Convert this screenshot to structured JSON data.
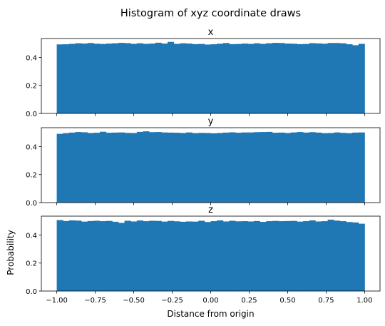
{
  "chart_data": {
    "title": "Histogram of xyz coordinate draws",
    "xlabel": "Distance from origin",
    "ylabel": "Probability",
    "bar_color": "#1f77b4",
    "x_ticks": [
      -1.0,
      -0.75,
      -0.5,
      -0.25,
      0.0,
      0.25,
      0.5,
      0.75,
      1.0
    ],
    "x_tick_labels": [
      "−1.00",
      "−0.75",
      "−0.50",
      "−0.25",
      "0.00",
      "0.25",
      "0.50",
      "0.75",
      "1.00"
    ],
    "y_ticks": [
      0.0,
      0.2,
      0.4
    ],
    "y_tick_labels": [
      "0.0",
      "0.2",
      "0.4"
    ],
    "xlim": [
      -1.1,
      1.1
    ],
    "ylim": [
      0,
      0.535
    ],
    "bins": {
      "start": -1.0,
      "end": 1.0,
      "count": 50
    },
    "panels": [
      {
        "type": "bar",
        "title": "x",
        "values": [
          0.493,
          0.494,
          0.497,
          0.501,
          0.499,
          0.503,
          0.498,
          0.496,
          0.499,
          0.501,
          0.504,
          0.502,
          0.497,
          0.501,
          0.497,
          0.499,
          0.505,
          0.499,
          0.511,
          0.497,
          0.501,
          0.499,
          0.495,
          0.496,
          0.492,
          0.494,
          0.498,
          0.503,
          0.495,
          0.496,
          0.499,
          0.497,
          0.501,
          0.497,
          0.501,
          0.504,
          0.503,
          0.499,
          0.498,
          0.495,
          0.496,
          0.502,
          0.5,
          0.498,
          0.503,
          0.503,
          0.501,
          0.494,
          0.487,
          0.497
        ]
      },
      {
        "type": "bar",
        "title": "y",
        "values": [
          0.491,
          0.496,
          0.5,
          0.504,
          0.502,
          0.497,
          0.499,
          0.506,
          0.499,
          0.5,
          0.501,
          0.498,
          0.497,
          0.505,
          0.509,
          0.503,
          0.504,
          0.501,
          0.5,
          0.499,
          0.497,
          0.501,
          0.496,
          0.498,
          0.497,
          0.495,
          0.497,
          0.5,
          0.502,
          0.499,
          0.501,
          0.501,
          0.503,
          0.504,
          0.505,
          0.499,
          0.5,
          0.497,
          0.501,
          0.504,
          0.5,
          0.503,
          0.5,
          0.496,
          0.497,
          0.501,
          0.498,
          0.496,
          0.5,
          0.501
        ]
      },
      {
        "type": "bar",
        "title": "z",
        "values": [
          0.507,
          0.5,
          0.505,
          0.503,
          0.496,
          0.5,
          0.502,
          0.499,
          0.501,
          0.495,
          0.487,
          0.502,
          0.497,
          0.504,
          0.499,
          0.502,
          0.501,
          0.496,
          0.501,
          0.498,
          0.495,
          0.497,
          0.496,
          0.502,
          0.493,
          0.499,
          0.505,
          0.497,
          0.502,
          0.498,
          0.499,
          0.497,
          0.5,
          0.494,
          0.499,
          0.501,
          0.499,
          0.5,
          0.501,
          0.496,
          0.499,
          0.505,
          0.497,
          0.499,
          0.51,
          0.503,
          0.499,
          0.493,
          0.49,
          0.481
        ]
      }
    ]
  }
}
